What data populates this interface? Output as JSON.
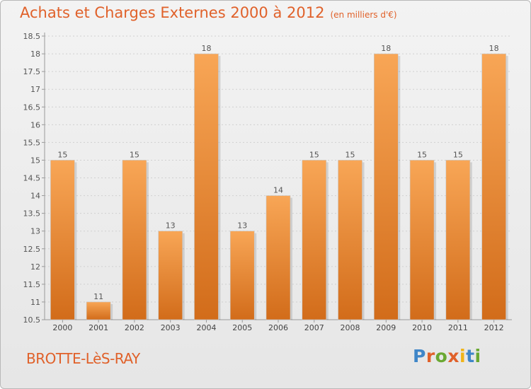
{
  "header": {
    "title": "Achats et Charges Externes 2000 à 2012",
    "unit": "(en milliers d'€)"
  },
  "footer": {
    "commune": "BROTTE-LèS-RAY",
    "brand": "Proxiti"
  },
  "colors": {
    "title": "#e0612a",
    "bar_top": "#f8a656",
    "bar_bottom": "#d26c1a",
    "brand_letters": [
      "#3f86c8",
      "#e0612a",
      "#6aa832",
      "#e0612a",
      "#f0b418",
      "#3f86c8",
      "#6aa832"
    ]
  },
  "chart_data": {
    "type": "bar",
    "categories": [
      "2000",
      "2001",
      "2002",
      "2003",
      "2004",
      "2005",
      "2006",
      "2007",
      "2008",
      "2009",
      "2010",
      "2011",
      "2012"
    ],
    "values": [
      15,
      11,
      15,
      13,
      18,
      13,
      14,
      15,
      15,
      18,
      15,
      15,
      18
    ],
    "value_labels": [
      "15",
      "11",
      "15",
      "13",
      "18",
      "13",
      "14",
      "15",
      "15",
      "18",
      "15",
      "15",
      "18"
    ],
    "ylim": [
      10.5,
      18.5
    ],
    "yticks": [
      "10.5",
      "11",
      "11.5",
      "12",
      "12.5",
      "13",
      "13.5",
      "14",
      "14.5",
      "15",
      "15.5",
      "16",
      "16.5",
      "17",
      "17.5",
      "18",
      "18.5"
    ],
    "grid": true,
    "xlabel": "",
    "ylabel": ""
  }
}
